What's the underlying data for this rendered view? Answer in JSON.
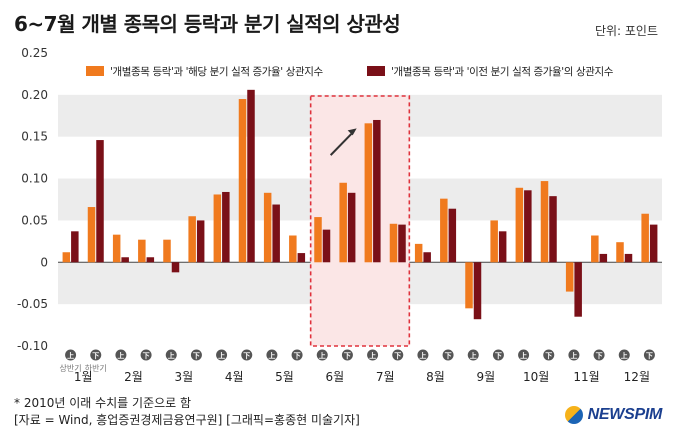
{
  "header": {
    "title": "6~7월 개별 종목의 등락과 분기 실적의 상관성",
    "unit": "단위: 포인트"
  },
  "footer": {
    "note": "* 2010년 이래 수치를 기준으로 함",
    "source": "[자료 = Wind, 흥업증권경제금융연구원] [그래픽=홍종현 미술기자]",
    "brand": "NEWSPIM"
  },
  "colors": {
    "series1": "#f07a1e",
    "series2": "#7a1018",
    "band": "#ececec",
    "highlight_border": "#e0323c",
    "highlight_fill": "#fbe6e6",
    "badge": "#555555"
  },
  "chart_data": {
    "type": "bar",
    "ylim": [
      -0.1,
      0.25
    ],
    "yticks": [
      0.25,
      0.2,
      0.15,
      0.1,
      0.05,
      0,
      -0.05,
      -0.1
    ],
    "ytick_labels": [
      "0.25",
      "0.20",
      "0.15",
      "0.10",
      "0.05",
      "0",
      "-0.05",
      "-0.10"
    ],
    "half_labels": [
      "上",
      "下"
    ],
    "half_notes": [
      "상반기",
      "하반기"
    ],
    "months": [
      "1월",
      "2월",
      "3월",
      "4월",
      "5월",
      "6월",
      "7월",
      "8월",
      "9월",
      "10월",
      "11월",
      "12월"
    ],
    "highlight_groups": [
      10,
      11,
      12,
      13
    ],
    "series": [
      {
        "name": "'개별종목 등락'과 '해당 분기 실적 증가율' 상관지수",
        "values": [
          0.012,
          0.066,
          0.033,
          0.027,
          0.027,
          0.055,
          0.081,
          0.195,
          0.083,
          0.032,
          0.054,
          0.095,
          0.166,
          0.046,
          0.022,
          0.076,
          -0.055,
          0.05,
          0.089,
          0.097,
          -0.035,
          0.032,
          0.024,
          0.058
        ]
      },
      {
        "name": "'개별종목 등락'과 '이전 분기 실적 증가율'의 상관지수",
        "values": [
          0.037,
          0.146,
          0.006,
          0.006,
          -0.012,
          0.05,
          0.084,
          0.206,
          0.069,
          0.011,
          0.039,
          0.083,
          0.17,
          0.045,
          0.012,
          0.064,
          -0.068,
          0.037,
          0.086,
          0.079,
          -0.065,
          0.01,
          0.01,
          0.045
        ]
      }
    ]
  }
}
